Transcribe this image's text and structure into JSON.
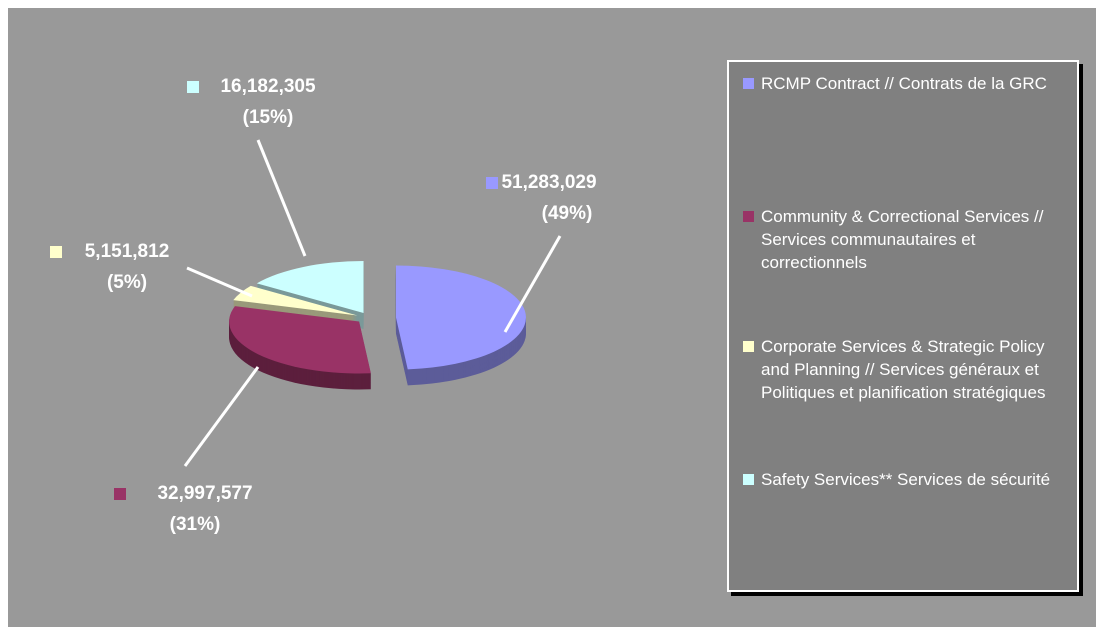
{
  "chart_data": {
    "type": "pie",
    "categories": [
      "RCMP Contract // Contrats de la GRC",
      "Community & Correctional Services // Services communautaires et correctionnels",
      "Corporate Services & Strategic Policy and Planning // Services généraux et Politiques et planification stratégiques",
      "Safety Services** Services de sécurité"
    ],
    "values": [
      51283029,
      32997577,
      5151812,
      16182305
    ],
    "value_labels": [
      "51,283,029",
      "32,997,577",
      "5,151,812",
      "16,182,305"
    ],
    "percents": [
      49,
      31,
      5,
      15
    ],
    "percent_labels": [
      "(49%)",
      "(31%)",
      "(5%)",
      "(15%)"
    ],
    "colors": [
      "#9999ff",
      "#993366",
      "#ffffcc",
      "#ccffff"
    ],
    "legend": "right"
  }
}
